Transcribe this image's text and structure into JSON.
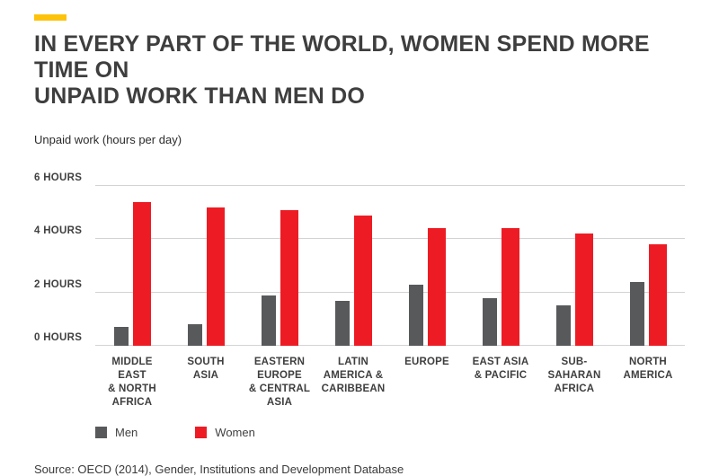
{
  "page": {
    "accent_color": "#fdc30b",
    "title": "IN EVERY PART OF THE WORLD, WOMEN SPEND MORE TIME ON\nUNPAID WORK THAN MEN DO",
    "subtitle": "Unpaid work (hours per day)",
    "source": "Source: OECD (2014), Gender, Institutions and Development Database"
  },
  "legend": {
    "items": [
      {
        "label": "Men",
        "color": "#58595b"
      },
      {
        "label": "Women",
        "color": "#ed1c24"
      }
    ]
  },
  "chart_data": {
    "type": "bar",
    "title": "In every part of the world, women spend more time on unpaid work than men do",
    "ylabel": "Unpaid work (hours per day)",
    "ylim": [
      0,
      6
    ],
    "grid": "horizontal",
    "legend_position": "bottom-left",
    "yticks": [
      {
        "value": 6,
        "label": "6 HOURS"
      },
      {
        "value": 4,
        "label": "4 HOURS"
      },
      {
        "value": 2,
        "label": "2 HOURS"
      },
      {
        "value": 0,
        "label": "0 HOURS"
      }
    ],
    "categories": [
      "MIDDLE EAST & NORTH AFRICA",
      "SOUTH ASIA",
      "EASTERN EUROPE & CENTRAL ASIA",
      "LATIN AMERICA & CARIBBEAN",
      "EUROPE",
      "EAST ASIA & PACIFIC",
      "SUB-SAHARAN AFRICA",
      "NORTH AMERICA"
    ],
    "category_labels": [
      "MIDDLE\nEAST\n& NORTH\nAFRICA",
      "SOUTH\nASIA",
      "EASTERN\nEUROPE\n& CENTRAL\nASIA",
      "LATIN\nAMERICA &\nCARIBBEAN",
      "EUROPE",
      "EAST ASIA\n& PACIFIC",
      "SUB-SAHARAN\nAFRICA",
      "NORTH\nAMERICA"
    ],
    "series": [
      {
        "name": "Men",
        "color": "#58595b",
        "values": [
          0.7,
          0.8,
          1.9,
          1.7,
          2.3,
          1.8,
          1.5,
          2.4
        ]
      },
      {
        "name": "Women",
        "color": "#ed1c24",
        "values": [
          5.4,
          5.2,
          5.1,
          4.9,
          4.4,
          4.4,
          4.2,
          3.8
        ]
      }
    ]
  }
}
